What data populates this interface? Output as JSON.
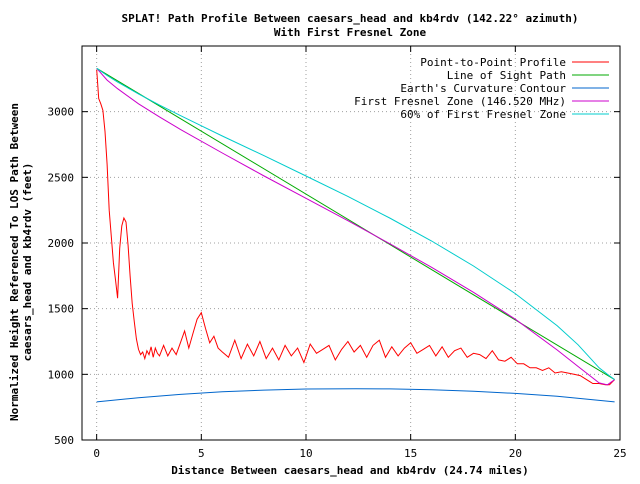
{
  "chart_data": {
    "type": "line",
    "title": "SPLAT! Path Profile Between caesars_head and kb4rdv (142.22° azimuth)",
    "subtitle": "With First Fresnel Zone",
    "xlabel": "Distance Between caesars_head and kb4rdv (24.74 miles)",
    "ylabel_line1": "Normalized Height Referenced To LOS Path Between",
    "ylabel_line2": "caesars_head and kb4rdv (feet)",
    "xlim": [
      -0.7,
      25
    ],
    "ylim": [
      500,
      3500
    ],
    "xticks": [
      0,
      5,
      10,
      15,
      20,
      25
    ],
    "yticks": [
      500,
      1000,
      1500,
      2000,
      2500,
      3000
    ],
    "grid": true,
    "legend_position": "top-right",
    "series": [
      {
        "name": "Point-to-Point Profile",
        "color": "#ff0000",
        "x": [
          0,
          0.1,
          0.2,
          0.3,
          0.4,
          0.5,
          0.6,
          0.7,
          0.8,
          0.9,
          1.0,
          1.1,
          1.2,
          1.3,
          1.4,
          1.5,
          1.6,
          1.7,
          1.8,
          1.9,
          2.0,
          2.1,
          2.2,
          2.3,
          2.4,
          2.5,
          2.6,
          2.7,
          2.8,
          2.9,
          3.0,
          3.2,
          3.4,
          3.6,
          3.8,
          4.0,
          4.2,
          4.4,
          4.6,
          4.8,
          5.0,
          5.2,
          5.4,
          5.6,
          5.8,
          6.0,
          6.3,
          6.6,
          6.9,
          7.2,
          7.5,
          7.8,
          8.1,
          8.4,
          8.7,
          9.0,
          9.3,
          9.6,
          9.9,
          10.2,
          10.5,
          10.8,
          11.1,
          11.4,
          11.7,
          12.0,
          12.3,
          12.6,
          12.9,
          13.2,
          13.5,
          13.8,
          14.1,
          14.4,
          14.7,
          15.0,
          15.3,
          15.6,
          15.9,
          16.2,
          16.5,
          16.8,
          17.1,
          17.4,
          17.7,
          18.0,
          18.3,
          18.6,
          18.9,
          19.2,
          19.5,
          19.8,
          20.1,
          20.4,
          20.7,
          21.0,
          21.3,
          21.6,
          21.9,
          22.2,
          22.5,
          22.8,
          23.1,
          23.4,
          23.7,
          24.0,
          24.3,
          24.5,
          24.74
        ],
        "y": [
          3320,
          3100,
          3060,
          3010,
          2850,
          2600,
          2250,
          2050,
          1850,
          1720,
          1580,
          1960,
          2130,
          2190,
          2160,
          1980,
          1750,
          1540,
          1400,
          1270,
          1190,
          1150,
          1170,
          1120,
          1180,
          1150,
          1210,
          1130,
          1200,
          1160,
          1140,
          1220,
          1140,
          1200,
          1150,
          1240,
          1330,
          1200,
          1310,
          1420,
          1470,
          1350,
          1240,
          1290,
          1200,
          1170,
          1130,
          1260,
          1120,
          1230,
          1140,
          1250,
          1120,
          1200,
          1110,
          1220,
          1140,
          1200,
          1090,
          1230,
          1160,
          1190,
          1220,
          1110,
          1190,
          1250,
          1170,
          1220,
          1130,
          1220,
          1260,
          1130,
          1210,
          1140,
          1200,
          1240,
          1160,
          1190,
          1220,
          1140,
          1210,
          1130,
          1180,
          1200,
          1130,
          1160,
          1150,
          1120,
          1180,
          1110,
          1100,
          1130,
          1080,
          1080,
          1050,
          1050,
          1030,
          1050,
          1010,
          1020,
          1010,
          1000,
          990,
          960,
          930,
          930,
          920,
          920,
          960
        ]
      },
      {
        "name": "Line of Sight Path",
        "color": "#00aa00",
        "x": [
          0,
          24.74
        ],
        "y": [
          3330,
          960
        ]
      },
      {
        "name": "Earth's Curvature Contour",
        "color": "#0066cc",
        "x": [
          0,
          2,
          4,
          6,
          8,
          10,
          12.37,
          14,
          16,
          18,
          20,
          22,
          24.74
        ],
        "y": [
          790,
          822,
          847,
          867,
          880,
          888,
          890,
          889,
          883,
          871,
          855,
          833,
          790
        ]
      },
      {
        "name": "First Fresnel Zone (146.520 MHz)",
        "color": "#cc00cc",
        "x": [
          0,
          0.5,
          1,
          2,
          3,
          4,
          6,
          8,
          10,
          12,
          14,
          16,
          18,
          20,
          22,
          23,
          24,
          24.4,
          24.74
        ],
        "y": [
          3330,
          3240,
          3175,
          3060,
          2960,
          2865,
          2685,
          2510,
          2340,
          2170,
          1995,
          1815,
          1625,
          1420,
          1185,
          1060,
          935,
          920,
          960
        ]
      },
      {
        "name": "60% of First Fresnel Zone",
        "color": "#00cccc",
        "x": [
          0,
          0.5,
          1,
          2,
          3,
          4,
          6,
          8,
          10,
          12,
          14,
          16,
          18,
          20,
          22,
          23,
          24,
          24.4,
          24.74
        ],
        "y": [
          3330,
          3275,
          3225,
          3135,
          3050,
          2970,
          2815,
          2665,
          2510,
          2355,
          2190,
          2015,
          1825,
          1615,
          1370,
          1225,
          1050,
          1000,
          960
        ]
      }
    ]
  }
}
